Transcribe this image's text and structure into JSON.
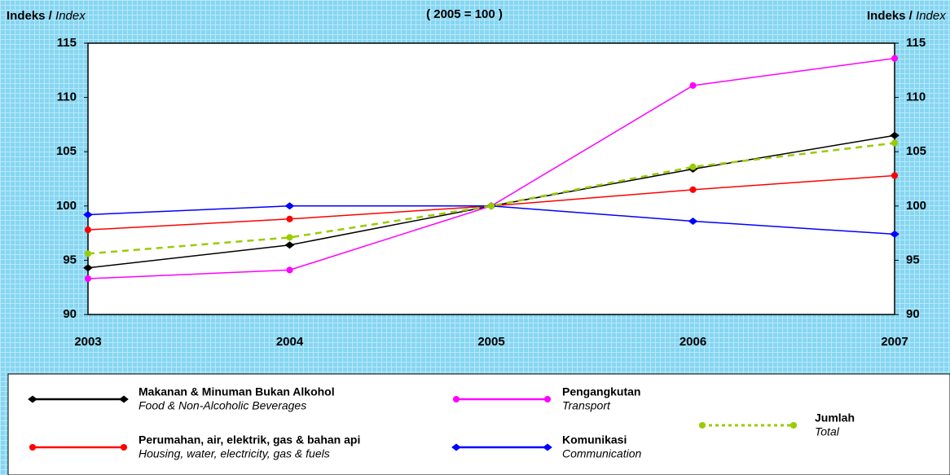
{
  "chart_data": {
    "type": "line",
    "subtitle": "( 2005 = 100 )",
    "y_label": {
      "main": "Indeks /",
      "italic": "Index"
    },
    "y2_label": {
      "main": "Indeks /",
      "italic": "Index"
    },
    "categories": [
      "2003",
      "2004",
      "2005",
      "2006",
      "2007"
    ],
    "ylim": [
      90,
      115
    ],
    "yticks": [
      90,
      95,
      100,
      105,
      110,
      115
    ],
    "y2lim": [
      90,
      115
    ],
    "y2ticks": [
      90,
      95,
      100,
      105,
      110,
      115
    ],
    "series": [
      {
        "name": "Makanan & Minuman Bukan Alkohol",
        "name_en": "Food & Non-Alcoholic Beverages",
        "color": "#000000",
        "marker": "diamond",
        "line_style": "solid",
        "values": [
          94.3,
          96.4,
          100,
          103.4,
          106.5
        ]
      },
      {
        "name": "Perumahan, air, elektrik, gas & bahan api",
        "name_en": "Housing, water, electricity, gas & fuels",
        "color": "#ff0000",
        "marker": "circle",
        "line_style": "solid",
        "values": [
          97.8,
          98.8,
          100,
          101.5,
          102.8
        ]
      },
      {
        "name": "Pengangkutan",
        "name_en": "Transport",
        "color": "#ff00ff",
        "marker": "circle",
        "line_style": "solid",
        "values": [
          93.3,
          94.1,
          100,
          111.1,
          113.6
        ]
      },
      {
        "name": "Komunikasi",
        "name_en": "Communication",
        "color": "#0000ff",
        "marker": "diamond",
        "line_style": "solid",
        "values": [
          99.2,
          100,
          100,
          98.6,
          97.4
        ]
      },
      {
        "name": "Jumlah",
        "name_en": "Total",
        "color": "#99cc00",
        "marker": "circle",
        "line_style": "dashed",
        "values": [
          95.6,
          97.1,
          100,
          103.6,
          105.8
        ]
      }
    ]
  }
}
